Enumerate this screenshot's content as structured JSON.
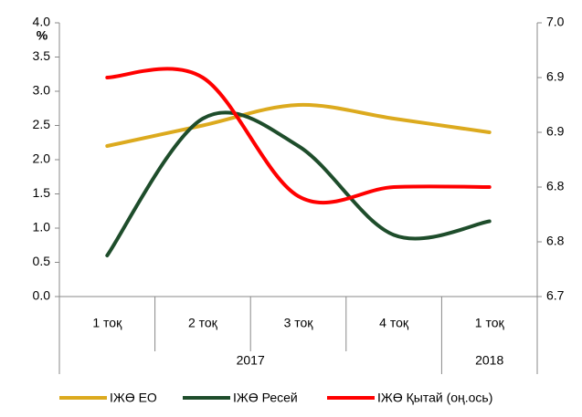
{
  "chart_data": {
    "type": "line",
    "y_label": "%",
    "categories": [
      "1 тоқ",
      "2 тоқ",
      "3 тоқ",
      "4 тоқ",
      "1 тоқ"
    ],
    "years": [
      "2017",
      "2017",
      "2017",
      "2017",
      "2018"
    ],
    "ylim": [
      0,
      4
    ],
    "yticks": [
      {
        "value": 0,
        "label": "0.0"
      },
      0.5,
      {
        "value": 1,
        "label": "1.0"
      },
      1.5,
      {
        "value": 2,
        "label": "2.0"
      },
      2.5,
      {
        "value": 3,
        "label": "3.0"
      },
      3.5,
      {
        "value": 4,
        "label": "4.0"
      }
    ],
    "y2lim": [
      6.7,
      7.0
    ],
    "y2ticks": [
      6.7,
      {
        "value": 6.76,
        "label": "6.8"
      },
      {
        "value": 6.82,
        "label": "6.8"
      },
      {
        "value": 6.88,
        "label": "6.9"
      },
      {
        "value": 6.94,
        "label": "6.9"
      },
      {
        "value": 7.0,
        "label": "7.0"
      }
    ],
    "series": [
      {
        "name": "ІЖӨ ЕО",
        "color": "#dcaa1e",
        "values": [
          2.2,
          2.5,
          2.8,
          2.6,
          2.4
        ]
      },
      {
        "name": "ІЖӨ Ресей",
        "color": "#1e4d2b",
        "values": [
          0.6,
          2.6,
          2.2,
          0.9,
          1.1
        ]
      },
      {
        "name": "ІЖӨ Қытай (оң.ось)",
        "color": "#ff0000",
        "axis": "y2",
        "values": [
          6.94,
          6.94,
          6.81,
          6.82,
          6.82
        ]
      }
    ]
  }
}
